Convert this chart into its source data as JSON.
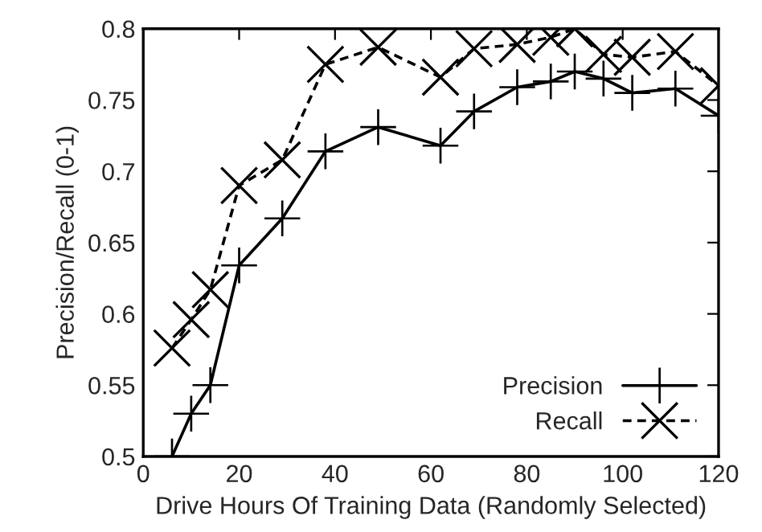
{
  "chart_data": {
    "type": "line",
    "xlabel": "Drive Hours Of Training Data (Randomly Selected)",
    "ylabel": "Precision/Recall (0-1)",
    "xlim": [
      0,
      120
    ],
    "xticks": [
      0,
      20,
      40,
      60,
      80,
      100,
      120
    ],
    "ylim": [
      0.5,
      0.8
    ],
    "yticks": [
      0.5,
      0.55,
      0.6,
      0.65,
      0.7,
      0.75,
      0.8
    ],
    "x": [
      6,
      10,
      14,
      20,
      29,
      38,
      49,
      62,
      69,
      78,
      85,
      90,
      96,
      102,
      111,
      120
    ],
    "marker": "cross",
    "legend": "bottom right",
    "grid": false,
    "series": [
      {
        "name": "Precision",
        "color": "#000000",
        "line_style": "solid",
        "values": [
          0.5,
          0.53,
          0.55,
          0.634,
          0.667,
          0.714,
          0.731,
          0.718,
          0.742,
          0.759,
          0.763,
          0.77,
          0.765,
          0.755,
          0.758,
          0.739
        ]
      },
      {
        "name": "Recall",
        "color": "#000000",
        "line_style": "dashed",
        "values": [
          0.576,
          0.596,
          0.617,
          0.69,
          0.708,
          0.775,
          0.787,
          0.766,
          0.786,
          0.789,
          0.794,
          0.8,
          0.782,
          0.78,
          0.784,
          0.76
        ]
      }
    ]
  }
}
